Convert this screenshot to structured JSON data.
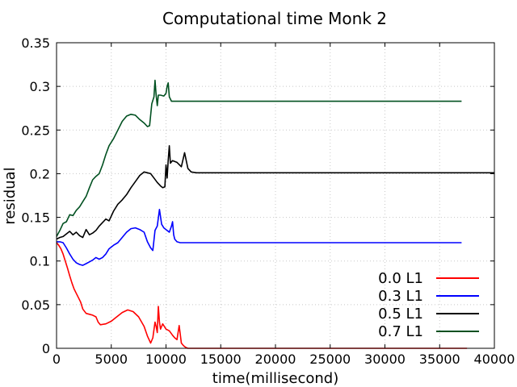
{
  "chart_data": {
    "type": "line",
    "title": "Computational time Monk 2",
    "xlabel": "time(millisecond)",
    "ylabel": "residual",
    "xlim": [
      0,
      40000
    ],
    "ylim": [
      0,
      0.35
    ],
    "xticks": [
      0,
      5000,
      10000,
      15000,
      20000,
      25000,
      30000,
      35000,
      40000
    ],
    "xtick_labels": [
      "0",
      "5000",
      "10000",
      "15000",
      "20000",
      "25000",
      "30000",
      "35000",
      "40000"
    ],
    "yticks": [
      0,
      0.05,
      0.1,
      0.15,
      0.2,
      0.25,
      0.3,
      0.35
    ],
    "ytick_labels": [
      "0",
      "0.05",
      "0.1",
      "0.15",
      "0.2",
      "0.25",
      "0.3",
      "0.35"
    ],
    "grid": true,
    "legend_position": "lower-right",
    "series": [
      {
        "name": "0.0 L1",
        "color": "#ff0000",
        "x": [
          0,
          200,
          400,
          600,
          800,
          1000,
          1200,
          1400,
          1600,
          1800,
          2000,
          2200,
          2400,
          2700,
          3000,
          3300,
          3600,
          3800,
          4000,
          4500,
          5000,
          5500,
          6000,
          6500,
          7000,
          7500,
          8000,
          8300,
          8600,
          8800,
          9000,
          9100,
          9200,
          9300,
          9400,
          9500,
          9700,
          10000,
          10300,
          10600,
          10800,
          11000,
          11200,
          11400,
          11600,
          11800,
          12000,
          14000,
          20000,
          30000,
          37500
        ],
        "y": [
          0.121,
          0.118,
          0.114,
          0.108,
          0.1,
          0.092,
          0.083,
          0.075,
          0.068,
          0.063,
          0.058,
          0.053,
          0.045,
          0.04,
          0.039,
          0.038,
          0.036,
          0.03,
          0.027,
          0.028,
          0.031,
          0.036,
          0.041,
          0.044,
          0.042,
          0.036,
          0.025,
          0.014,
          0.006,
          0.012,
          0.03,
          0.025,
          0.018,
          0.048,
          0.03,
          0.022,
          0.028,
          0.022,
          0.02,
          0.015,
          0.012,
          0.01,
          0.026,
          0.006,
          0.003,
          0.001,
          0.0,
          0.0,
          0.0,
          0.0,
          0.0
        ]
      },
      {
        "name": "0.3 L1",
        "color": "#0000ff",
        "x": [
          0,
          300,
          600,
          900,
          1200,
          1500,
          1800,
          2100,
          2400,
          2700,
          3000,
          3300,
          3600,
          3900,
          4200,
          4500,
          4800,
          5200,
          5600,
          6000,
          6400,
          6800,
          7200,
          7600,
          8000,
          8300,
          8600,
          8800,
          9000,
          9200,
          9400,
          9600,
          9800,
          10000,
          10300,
          10500,
          10600,
          10700,
          10800,
          11000,
          11300,
          12000,
          14000,
          20000,
          30000,
          37000
        ],
        "y": [
          0.122,
          0.122,
          0.121,
          0.115,
          0.108,
          0.102,
          0.098,
          0.096,
          0.095,
          0.097,
          0.099,
          0.101,
          0.104,
          0.102,
          0.104,
          0.108,
          0.114,
          0.118,
          0.121,
          0.127,
          0.133,
          0.137,
          0.138,
          0.136,
          0.133,
          0.122,
          0.115,
          0.112,
          0.135,
          0.14,
          0.159,
          0.142,
          0.138,
          0.136,
          0.133,
          0.14,
          0.145,
          0.13,
          0.125,
          0.122,
          0.121,
          0.121,
          0.121,
          0.121,
          0.121,
          0.121
        ]
      },
      {
        "name": "0.5 L1",
        "color": "#000000",
        "x": [
          0,
          300,
          600,
          900,
          1200,
          1500,
          1800,
          2100,
          2400,
          2700,
          3000,
          3300,
          3600,
          3900,
          4200,
          4500,
          4800,
          5200,
          5600,
          6000,
          6400,
          6800,
          7200,
          7600,
          8000,
          8300,
          8600,
          8900,
          9200,
          9500,
          9700,
          9900,
          10000,
          10100,
          10200,
          10300,
          10400,
          10600,
          11000,
          11400,
          11700,
          12000,
          12300,
          12800,
          14000,
          20000,
          30000,
          40000
        ],
        "y": [
          0.125,
          0.127,
          0.128,
          0.131,
          0.134,
          0.13,
          0.133,
          0.129,
          0.127,
          0.136,
          0.13,
          0.132,
          0.135,
          0.14,
          0.144,
          0.148,
          0.146,
          0.157,
          0.165,
          0.17,
          0.176,
          0.184,
          0.191,
          0.198,
          0.202,
          0.201,
          0.2,
          0.195,
          0.19,
          0.186,
          0.184,
          0.185,
          0.21,
          0.195,
          0.215,
          0.232,
          0.212,
          0.215,
          0.213,
          0.208,
          0.224,
          0.206,
          0.202,
          0.201,
          0.201,
          0.201,
          0.201,
          0.201
        ]
      },
      {
        "name": "0.7 L1",
        "color": "#005020",
        "x": [
          0,
          300,
          600,
          900,
          1200,
          1500,
          1800,
          2100,
          2400,
          2700,
          3000,
          3300,
          3600,
          3900,
          4200,
          4500,
          4800,
          5200,
          5600,
          6000,
          6400,
          6800,
          7200,
          7600,
          8000,
          8300,
          8500,
          8700,
          8900,
          9000,
          9100,
          9200,
          9300,
          9500,
          9800,
          10000,
          10100,
          10200,
          10300,
          10500,
          11000,
          12000,
          14000,
          20000,
          30000,
          37000
        ],
        "y": [
          0.128,
          0.135,
          0.143,
          0.145,
          0.153,
          0.152,
          0.158,
          0.162,
          0.168,
          0.174,
          0.184,
          0.193,
          0.197,
          0.2,
          0.21,
          0.222,
          0.232,
          0.24,
          0.25,
          0.26,
          0.266,
          0.268,
          0.267,
          0.262,
          0.258,
          0.254,
          0.255,
          0.28,
          0.288,
          0.307,
          0.29,
          0.278,
          0.29,
          0.29,
          0.289,
          0.292,
          0.3,
          0.304,
          0.288,
          0.283,
          0.283,
          0.283,
          0.283,
          0.283,
          0.283,
          0.283
        ]
      }
    ]
  }
}
